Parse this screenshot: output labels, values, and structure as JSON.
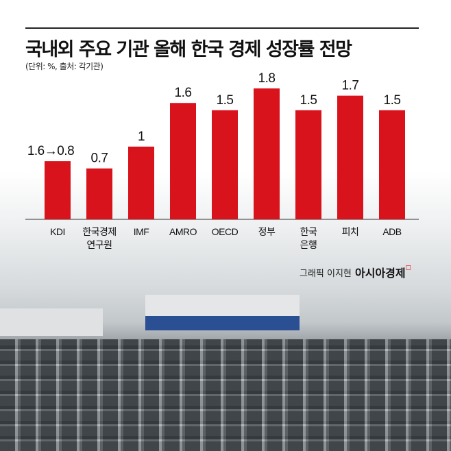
{
  "title": "국내외 주요 기관 올해 한국 경제 성장률 전망",
  "subtitle": "(단위: %, 출처: 각기관)",
  "credit": "그래픽 이지현",
  "logo": "아시아경제",
  "chart_data": {
    "type": "bar",
    "title": "국내외 주요 기관 올해 한국 경제 성장률 전망",
    "categories": [
      "KDI",
      "한국경제\n연구원",
      "IMF",
      "AMRO",
      "OECD",
      "정부",
      "한국\n은행",
      "피치",
      "ADB"
    ],
    "values": [
      0.8,
      0.7,
      1.0,
      1.6,
      1.5,
      1.8,
      1.5,
      1.7,
      1.5
    ],
    "data_labels": [
      "1.6→0.8",
      "0.7",
      "1",
      "1.6",
      "1.5",
      "1.8",
      "1.5",
      "1.7",
      "1.5"
    ],
    "ylim": [
      0,
      1.8
    ],
    "grid": false,
    "bar_color": "#d9131c"
  }
}
